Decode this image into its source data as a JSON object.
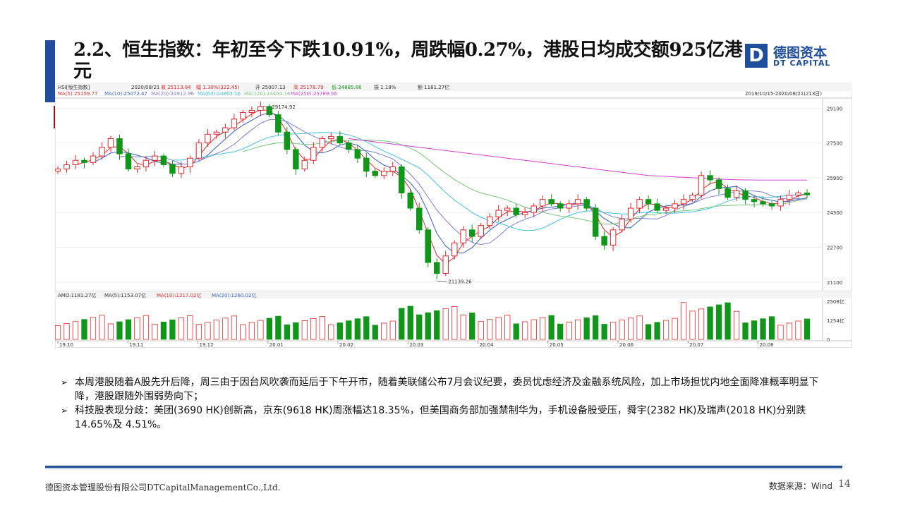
{
  "slide": {
    "title": "2.2、恒生指数：年初至今下跌10.91%，周跌幅0.27%，港股日均成交额925亿港元",
    "logo": {
      "mark": "D",
      "cn": "德图资本",
      "en": "DT CAPITAL"
    },
    "footer": {
      "company": "德图资本管理股份有限公司DTCapitalManagementCo.,Ltd.",
      "source": "数据来源：Wind",
      "page": "14"
    },
    "bullets": [
      "本周港股随着A股先升后降，周三由于因台风吹袭而延后于下午开市，随着美联储公布7月会议纪要，委员忧虑经济及金融系统风险，加上市场担忧内地全面降准概率明显下降，港股跟随外围弱势向下；",
      "科技股表现分歧：美团(3690 HK)创新高，京东(9618 HK)周涨幅达18.35%，但美国商务部加强禁制华为，手机设备股受压，舜宇(2382 HK)及瑞声(2018 HK)分别跌 14.65%及 4.51%。"
    ],
    "colors": {
      "brand": "#1f4e9a",
      "up": "#e0282e",
      "down": "#109618"
    }
  },
  "chart_data": [
    {
      "type": "candlestick",
      "header": {
        "code": "HSI[恒生指数]",
        "date": "2020/08/21",
        "close": "收 25113.84",
        "change": "幅 1.30%(322.45)",
        "open": "开 25007.13",
        "high": "高 25178.79",
        "low": "低 24885.86",
        "turnover": "振 1.18%",
        "amount": "额 1181.27亿"
      },
      "ma_labels": [
        "MA(5):25159.77",
        "MA(10):25072.47",
        "MA(20):24912.96",
        "MA(60):24863.16",
        "MA(120):24454.16",
        "MA(250):25789.06"
      ],
      "ma_colors": [
        "#e0282e",
        "#3b5fc0",
        "#8080d0",
        "#44c0e0",
        "#7bc47f",
        "#d040d0"
      ],
      "range_label": "2019/10/15-2020/08/21(213日)",
      "y_ticks": [
        29100,
        27500,
        25900,
        24300,
        22700,
        21100
      ],
      "ylim": [
        20800,
        29500
      ],
      "annotations": [
        {
          "text": "29174.92",
          "x": "20.01",
          "y": 29174.92
        },
        {
          "text": "21139.26",
          "x": "20.03",
          "y": 21139.26
        }
      ],
      "x_ticks": [
        "19.10",
        "19.11",
        "19.12",
        "20.01",
        "20.02",
        "20.03",
        "20.04",
        "20.05",
        "20.06",
        "20.07",
        "20.08"
      ],
      "close_path": [
        26300,
        26500,
        26700,
        26600,
        26900,
        27300,
        27700,
        27000,
        26300,
        26400,
        26700,
        26900,
        26500,
        26100,
        26400,
        26800,
        27500,
        27900,
        28000,
        28200,
        28600,
        28900,
        29000,
        29174,
        28800,
        28000,
        27200,
        26300,
        26700,
        27300,
        27700,
        27800,
        27500,
        27200,
        26800,
        26200,
        26000,
        26200,
        26400,
        25200,
        24500,
        23500,
        22000,
        21500,
        22300,
        22900,
        23500,
        23200,
        23700,
        24100,
        24400,
        24500,
        24200,
        24300,
        24600,
        24900,
        24700,
        24500,
        24700,
        24900,
        24500,
        23200,
        22800,
        23500,
        24000,
        24500,
        24900,
        24700,
        24400,
        24500,
        24700,
        24900,
        25100,
        26000,
        25800,
        25400,
        25000,
        25300,
        24900,
        24800,
        24700,
        24600,
        24900,
        25100,
        25200,
        25113
      ],
      "ma250_path": [
        null,
        null,
        null,
        null,
        null,
        null,
        null,
        null,
        null,
        null,
        null,
        null,
        null,
        null,
        null,
        null,
        null,
        null,
        null,
        null,
        null,
        null,
        null,
        null,
        null,
        null,
        null,
        null,
        null,
        null,
        null,
        null,
        null,
        27700,
        27650,
        27600,
        27550,
        27500,
        27450,
        27400,
        27350,
        27300,
        27250,
        27200,
        27150,
        27100,
        27050,
        27000,
        26950,
        26900,
        26850,
        26800,
        26750,
        26700,
        26650,
        26600,
        26550,
        26500,
        26450,
        26400,
        26350,
        26300,
        26250,
        26200,
        26150,
        26100,
        26050,
        26000,
        25980,
        25960,
        25940,
        25920,
        25900,
        25880,
        25860,
        25840,
        25820,
        25810,
        25800,
        25795,
        25790,
        25789,
        25789,
        25789,
        25789,
        25789
      ]
    },
    {
      "type": "bar",
      "header": {
        "amo": "AMO:1181.27亿",
        "ma5": "MA(5):1153.07亿",
        "ma10": "MA(10):1217.02亿",
        "ma20": "MA(20):1260.02亿"
      },
      "y_ticks": [
        "2508亿",
        "1254亿",
        "0"
      ],
      "ylim": [
        0,
        2508
      ]
    }
  ]
}
